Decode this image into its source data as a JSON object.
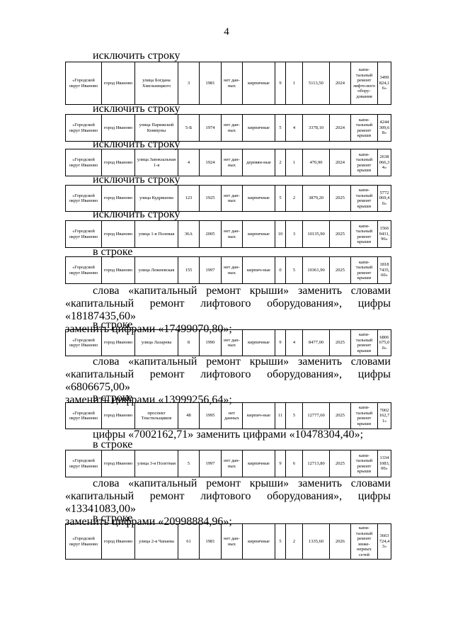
{
  "page_number": "4",
  "blocks": [
    {
      "label": "исключить строку",
      "row": [
        "«Городской округ Иваново",
        "город Иваново",
        "улица Богдана Хмельницкого",
        "3",
        "1981",
        "нет дан-ных",
        "кирпичные",
        "9",
        "1",
        "5113,50",
        "2024",
        "капи-тальный ремонт лифто-вого обору-дования",
        "3499824,16»"
      ]
    },
    {
      "label": "исключить строку",
      "row": [
        "«Городской округ Иваново",
        "город Иваново",
        "улица Парижской Коммуны",
        "5-Б",
        "1974",
        "нет дан-ных",
        "кирпичные",
        "5",
        "4",
        "3378,10",
        "2024",
        "капи-тальный ремонт крыши",
        "4244309,68»"
      ]
    },
    {
      "label": "исключить строку",
      "row": [
        "«Городской округ Иваново",
        "город Иваново",
        "улица Завокзальная 1-я",
        "4",
        "1924",
        "нет дан-ных",
        "деревян-ные",
        "2",
        "1",
        "470,90",
        "2024",
        "капи-тальный ремонт крыши",
        "2638066,34»"
      ]
    },
    {
      "label": "исключить строку",
      "row": [
        "«Городской округ Иваново",
        "город Иваново",
        "улица Кудряшова",
        "123",
        "1925",
        "нет дан-ных",
        "кирпичные",
        "5",
        "2",
        "3879,20",
        "2025",
        "капи-тальный ремонт крыши",
        "5772069,40»"
      ]
    },
    {
      "label": "исключить строку",
      "row": [
        "«Городской округ Иваново",
        "город Иваново",
        "улица 1-я Полевая",
        "36А",
        "2005",
        "нет дан-ных",
        "кирпичные",
        "10",
        "3",
        "10135,90",
        "2025",
        "капи-тальный ремонт крыши",
        "15669431,96»"
      ]
    },
    {
      "label": "в строке",
      "row": [
        "«Городской округ Иваново",
        "город Иваново",
        "улица Лежневская",
        "155",
        "1997",
        "нет дан-ных",
        "кирпич-ные",
        "0",
        "5",
        "10361,90",
        "2025",
        "капи-тальный ремонт крыши",
        "18187435,60»"
      ],
      "text": [
        "слова «капитальный ремонт крыши» заменить словами",
        "«капитальный ремонт лифтового оборудования», цифры «18187435,60»",
        "заменить цифрами «17499070,80»;"
      ]
    },
    {
      "label": "в строке",
      "row": [
        "«Городской округ Иваново",
        "город Иваново",
        "улица Лазарева",
        "8",
        "1990",
        "нет дан-ных",
        "кирпичные",
        "9",
        "4",
        "8477,00",
        "2025",
        "капи-тальный ремонт крыши",
        "6806675,00»"
      ],
      "text": [
        "слова «капитальный ремонт крыши» заменить словами",
        "«капитальный ремонт лифтового оборудования», цифры «6806675,00»",
        "заменить цифрами «13999256,64»;"
      ]
    },
    {
      "label": "в строке",
      "row": [
        "«Городской округ Иваново",
        "город Иваново",
        "проспект Текстильщиков",
        "48",
        "1995",
        "нет данных",
        "кирпич-ные",
        "11",
        "5",
        "12777,60",
        "2025",
        "капи-тальный ремонт крыши",
        "7002162,71»"
      ],
      "text": [
        "цифры «7002162,71» заменить цифрами «10478304,40»;"
      ]
    },
    {
      "label": "в строке",
      "row": [
        "«Городской округ Иваново",
        "город Иваново",
        "улица 3-я Полетная",
        "5",
        "1997",
        "нет дан-ных",
        "кирпичные",
        "9",
        "6",
        "12713,80",
        "2025",
        "капи-тальный ремонт крыши",
        "13341083,00»"
      ],
      "text": [
        "слова «капитальный ремонт крыши» заменить словами",
        "«капитальный ремонт лифтового оборудования», цифры «13341083,00»",
        "заменить цифрами «20998884,96»;"
      ]
    },
    {
      "label": "в строке",
      "row": [
        "«Городской округ Иваново",
        "город Иваново",
        "улица 2-я Чапаева",
        "61",
        "1981",
        "нет дан-ных",
        "кирпичные",
        "5",
        "2",
        "1335,60",
        "2026",
        "капи-тальный ремонт инже-нерных сетей",
        "3663724,43»"
      ]
    }
  ]
}
